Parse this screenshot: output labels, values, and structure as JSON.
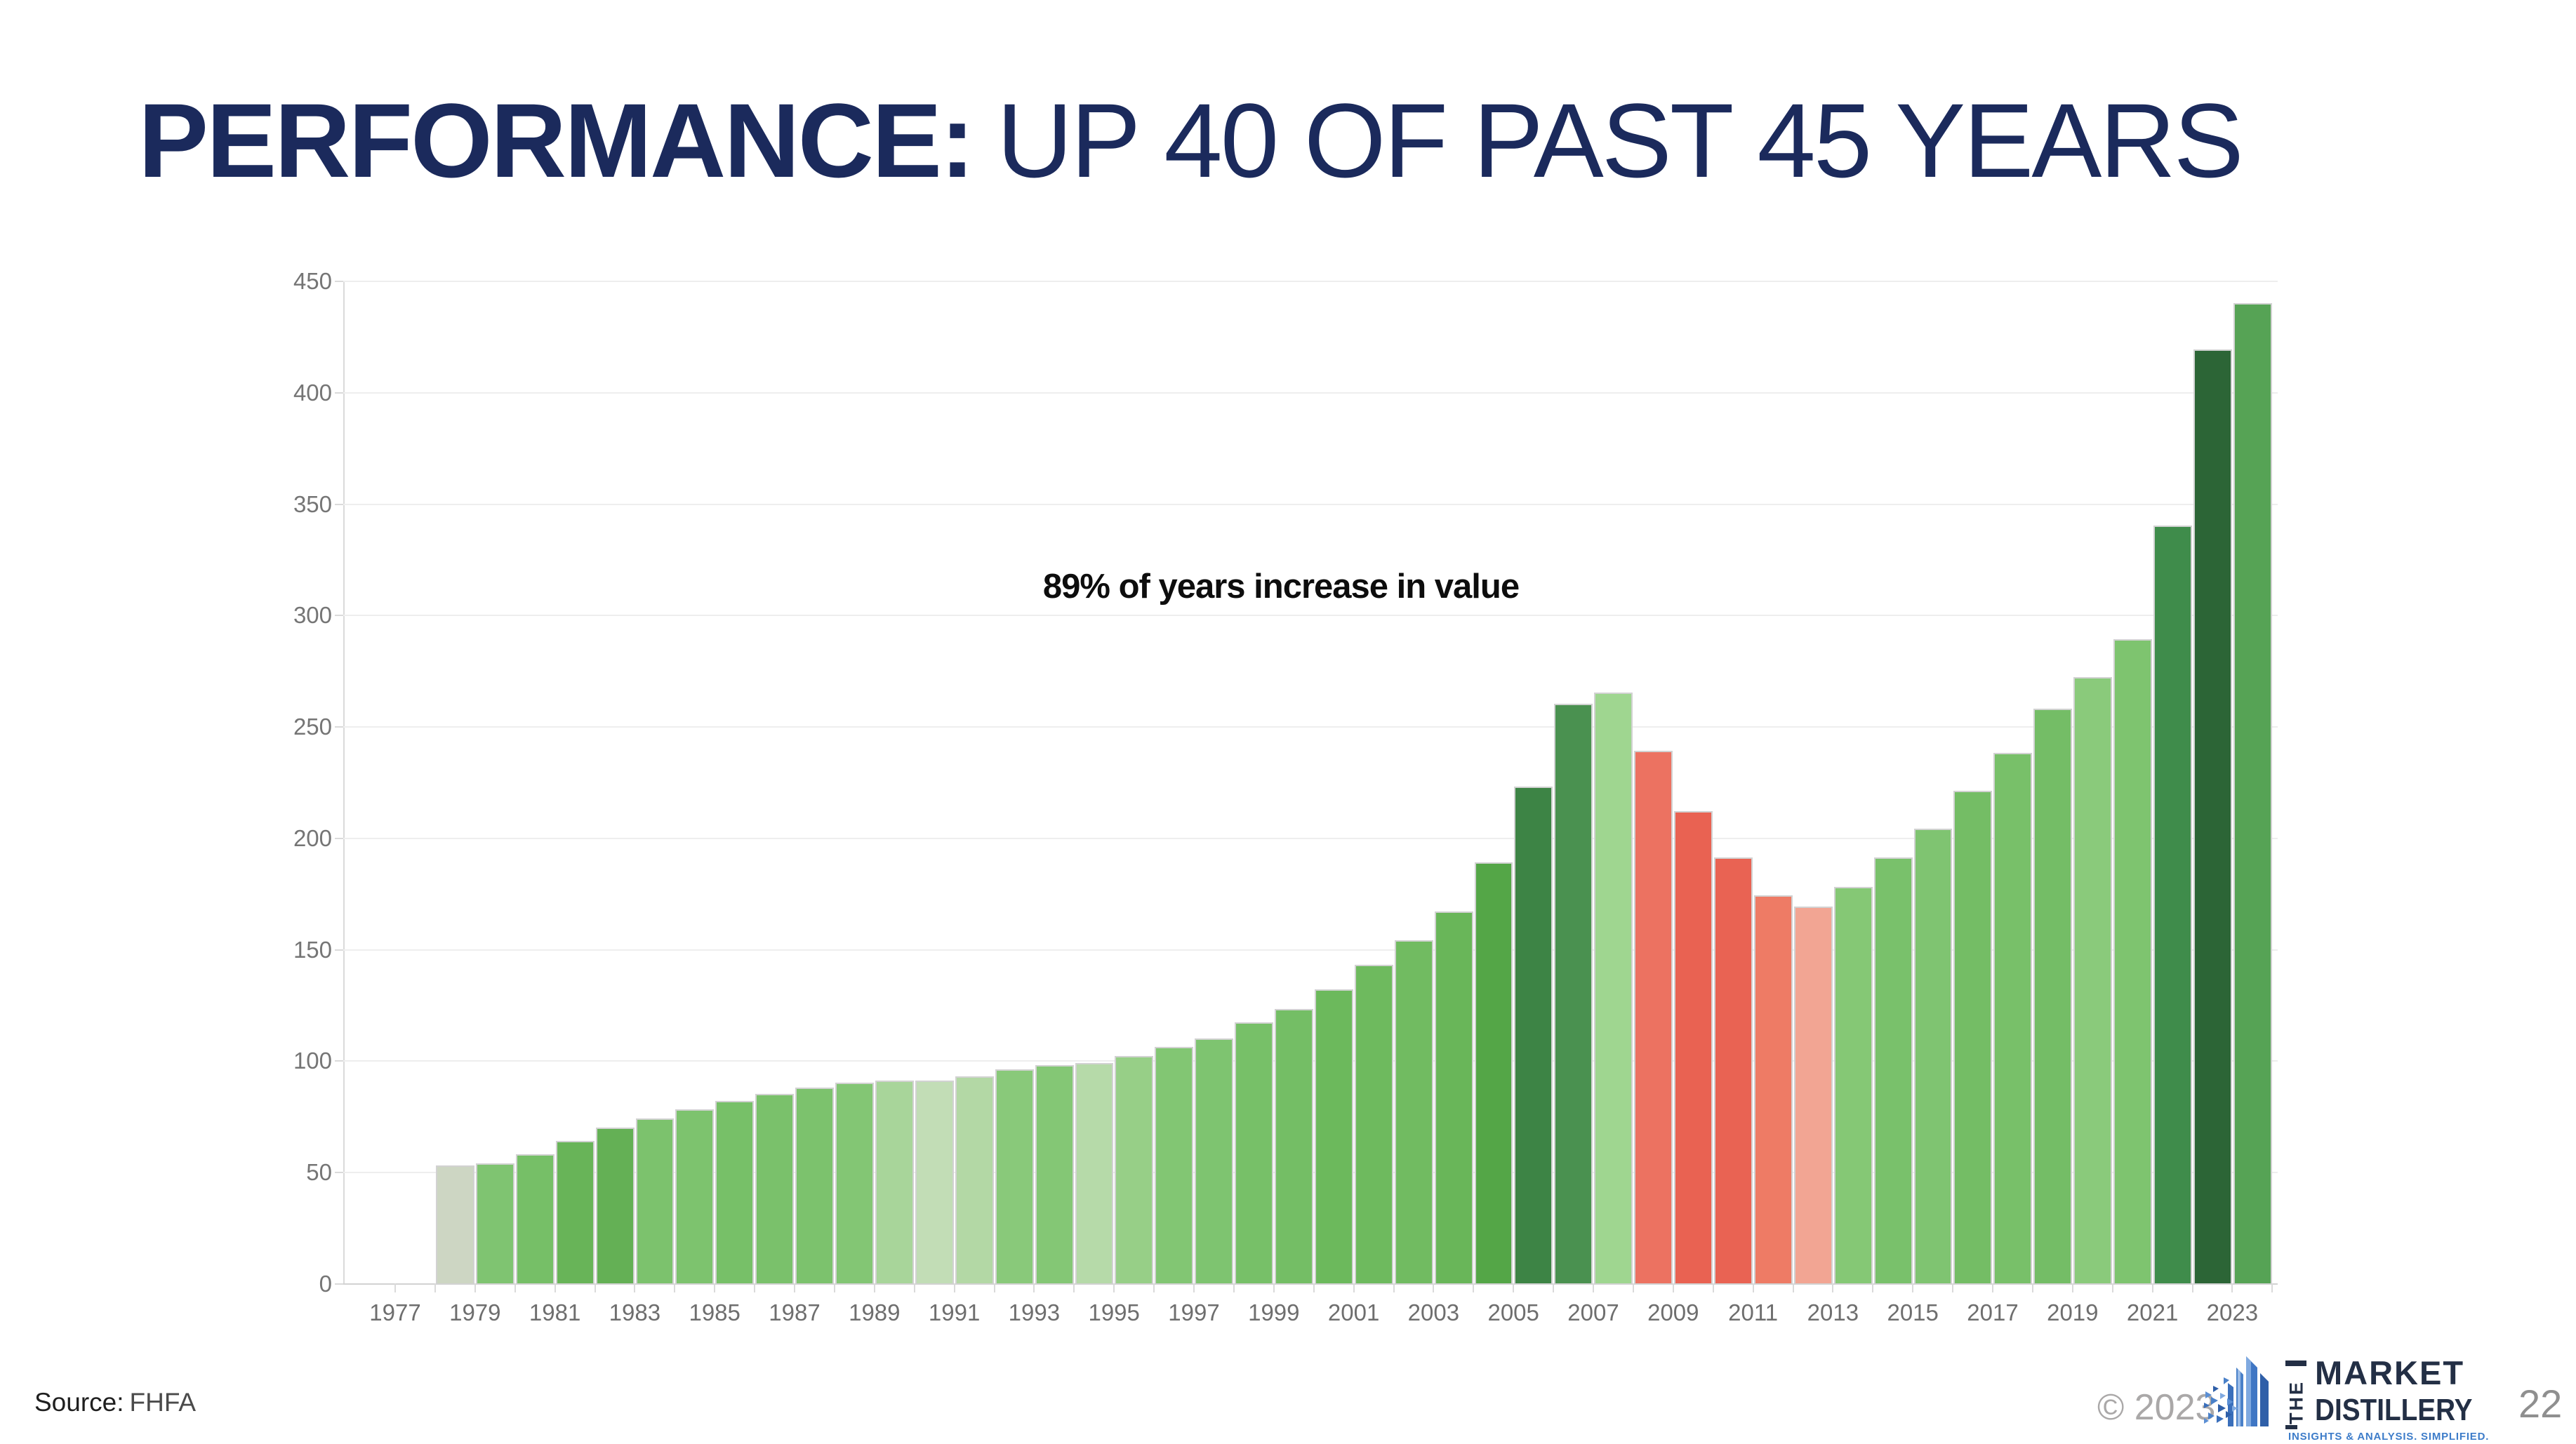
{
  "title": {
    "emphasis": "PERFORMANCE:",
    "rest": "UP 40 OF PAST 45 YEARS"
  },
  "annotation": "89% of years increase in value",
  "source": {
    "label": "Source:",
    "value": "FHFA"
  },
  "footer": {
    "copyright": "© 2023",
    "page_number": "22"
  },
  "logo": {
    "the": "THE",
    "line1": "MARKET",
    "line2": "DISTILLERY",
    "tagline": "INSIGHTS & ANALYSIS. SIMPLIFIED.",
    "navy": "#232f45",
    "blue": "#3d7cc9"
  },
  "chart_data": {
    "type": "bar",
    "title": "",
    "xlabel": "",
    "ylabel": "",
    "ylim": [
      0,
      450
    ],
    "grid": true,
    "legend": "none",
    "x": [
      1978,
      1979,
      1980,
      1981,
      1982,
      1983,
      1984,
      1985,
      1986,
      1987,
      1988,
      1989,
      1990,
      1991,
      1992,
      1993,
      1994,
      1995,
      1996,
      1997,
      1998,
      1999,
      2000,
      2001,
      2002,
      2003,
      2004,
      2005,
      2006,
      2007,
      2008,
      2009,
      2010,
      2011,
      2012,
      2013,
      2014,
      2015,
      2016,
      2017,
      2018,
      2019,
      2020,
      2021,
      2022,
      2023
    ],
    "values": [
      53,
      54,
      58,
      64,
      70,
      74,
      78,
      82,
      85,
      88,
      90,
      91,
      91,
      93,
      96,
      98,
      99,
      102,
      106,
      110,
      117,
      123,
      132,
      143,
      154,
      167,
      189,
      223,
      260,
      265,
      239,
      212,
      191,
      174,
      169,
      178,
      191,
      204,
      221,
      238,
      258,
      272,
      289,
      340,
      419,
      440
    ],
    "colors": [
      "#cdd6c3",
      "#7fc471",
      "#76bf67",
      "#68b458",
      "#64b055",
      "#7cc26d",
      "#7dc36e",
      "#77c068",
      "#7ac16b",
      "#7cc26d",
      "#83c674",
      "#a8d59a",
      "#c2ddb6",
      "#b3d8a5",
      "#89c97a",
      "#84c775",
      "#b6daa9",
      "#97cf87",
      "#82c673",
      "#7ec470",
      "#77c068",
      "#74be65",
      "#6cb95c",
      "#6eba5e",
      "#71bb61",
      "#69b659",
      "#54a647",
      "#3d8445",
      "#4a9150",
      "#9fd690",
      "#ec7261",
      "#e96252",
      "#e96353",
      "#ee7b65",
      "#f2a593",
      "#85c875",
      "#79c16b",
      "#7fc471",
      "#74bd65",
      "#78c069",
      "#74bd66",
      "#8aca7b",
      "#7ec46f",
      "#3f8c4b",
      "#2c6536",
      "#56a355"
    ],
    "x_tick_labels": [
      "1977",
      "1979",
      "1981",
      "1983",
      "1985",
      "1987",
      "1989",
      "1991",
      "1993",
      "1995",
      "1997",
      "1999",
      "2001",
      "2003",
      "2005",
      "2007",
      "2009",
      "2011",
      "2013",
      "2015",
      "2017",
      "2019",
      "2021",
      "2023"
    ],
    "y_ticks": [
      0,
      50,
      100,
      150,
      200,
      250,
      300,
      350,
      400,
      450
    ]
  }
}
